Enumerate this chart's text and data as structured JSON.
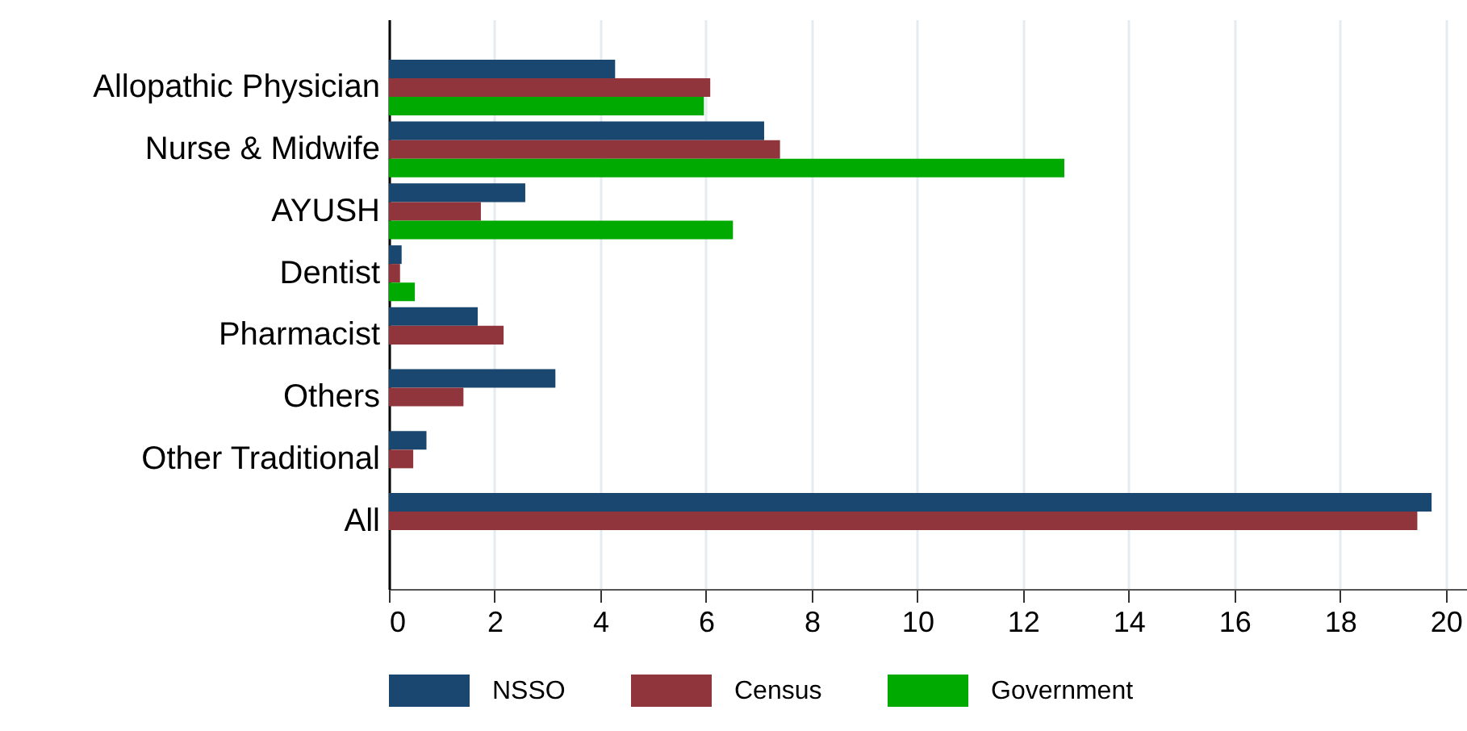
{
  "chart_data": {
    "type": "bar",
    "orientation": "horizontal",
    "categories": [
      "Allopathic Physician",
      "Nurse & Midwife",
      "AYUSH",
      "Dentist",
      "Pharmacist",
      "Others",
      "Other Traditional",
      "All"
    ],
    "series": [
      {
        "name": "NSSO",
        "color": "#1a476f",
        "values": [
          4.28,
          7.1,
          2.58,
          0.24,
          1.68,
          3.15,
          0.71,
          19.73
        ]
      },
      {
        "name": "Census",
        "color": "#90353b",
        "values": [
          6.08,
          7.4,
          1.74,
          0.21,
          2.17,
          1.41,
          0.46,
          19.46
        ]
      },
      {
        "name": "Government",
        "color": "#00aa00",
        "values": [
          5.96,
          12.78,
          6.51,
          0.49,
          null,
          null,
          null,
          null
        ]
      }
    ],
    "xlim": [
      0,
      20.4
    ],
    "xticks": [
      0,
      2,
      4,
      6,
      8,
      10,
      12,
      14,
      16,
      18,
      20
    ],
    "grid": "x",
    "legend": "bottom"
  }
}
